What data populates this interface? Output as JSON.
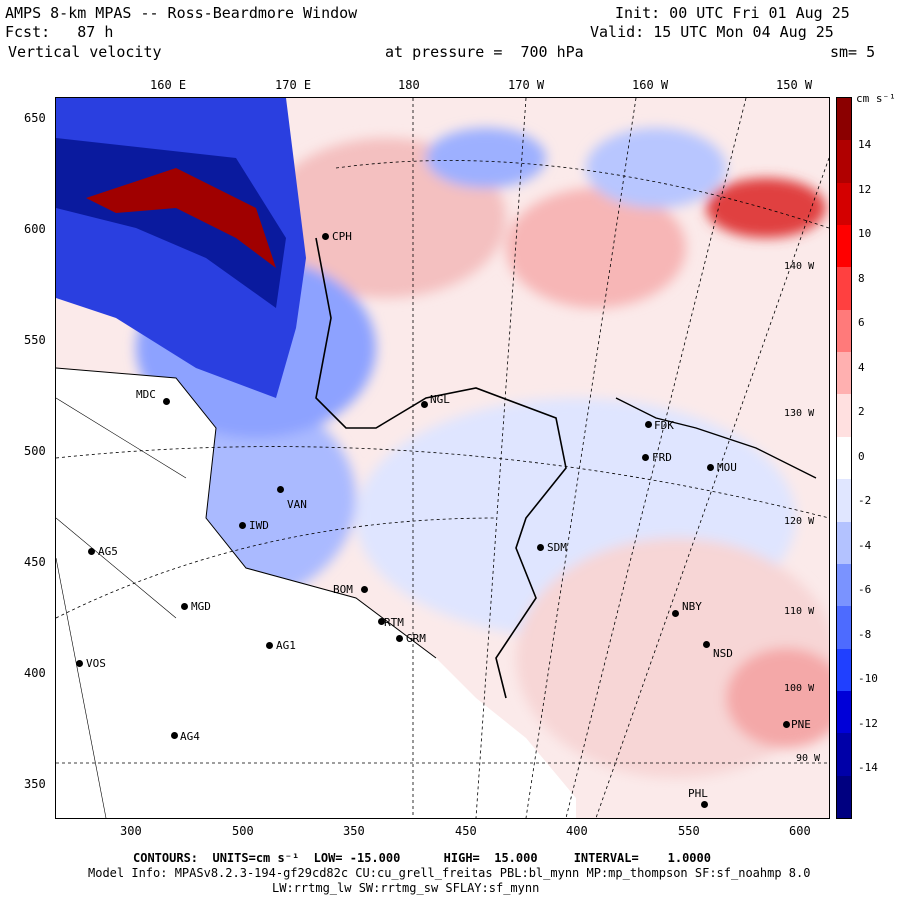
{
  "header": {
    "line1_left": "AMPS 8-km MPAS -- Ross-Beardmore Window",
    "line2_left": "Fcst:   87 h",
    "line3_left": "Vertical velocity",
    "line1_right": "Init: 00 UTC Fri 01 Aug 25",
    "line2_right": "Valid: 15 UTC Mon 04 Aug 25",
    "pressure": "at pressure =  700 hPa",
    "sm": "sm= 5"
  },
  "top_ticks": [
    "160 E",
    "170 E",
    "180",
    "170 W",
    "160 W",
    "150 W"
  ],
  "left_ticks": [
    "650",
    "600",
    "550",
    "500",
    "450",
    "400",
    "350"
  ],
  "bottom_ticks": [
    "300",
    "350",
    "400",
    "450",
    "500",
    "550",
    "600"
  ],
  "colorbar": {
    "units": "cm s⁻¹",
    "labels": [
      "14",
      "12",
      "10",
      "8",
      "6",
      "4",
      "2",
      "0",
      "-2",
      "-4",
      "-6",
      "-8",
      "-10",
      "-12",
      "-14"
    ],
    "colors": [
      "#8b0000",
      "#b00000",
      "#d40000",
      "#ff0000",
      "#ff4040",
      "#ff7a7a",
      "#ffb0b0",
      "#ffe0e0",
      "#ffffff",
      "#e0e6ff",
      "#b3c2ff",
      "#7a93ff",
      "#4d6bff",
      "#2040ff",
      "#0000d8",
      "#0000a8",
      "#000080"
    ]
  },
  "stations": [
    {
      "name": "MDC"
    },
    {
      "name": "NGL"
    },
    {
      "name": "FDK"
    },
    {
      "name": "FRD"
    },
    {
      "name": "MOU"
    },
    {
      "name": "AG5"
    },
    {
      "name": "IWD"
    },
    {
      "name": "VAN"
    },
    {
      "name": "SDM"
    },
    {
      "name": "MGD"
    },
    {
      "name": "BOM"
    },
    {
      "name": "RTM"
    },
    {
      "name": "GRM"
    },
    {
      "name": "AG1"
    },
    {
      "name": "VOS"
    },
    {
      "name": "NBY"
    },
    {
      "name": "NSD"
    },
    {
      "name": "AG4"
    },
    {
      "name": "PNE"
    },
    {
      "name": "PHL"
    },
    {
      "name": "CPH"
    }
  ],
  "meridian_labels": [
    "140 W",
    "130 W",
    "120 W",
    "110 W",
    "100 W",
    "90 W"
  ],
  "footer": {
    "contours": "CONTOURS:  UNITS=cm s⁻¹  LOW= -15.000      HIGH=  15.000     INTERVAL=    1.0000",
    "model_info": "Model Info: MPASv8.2.3-194-gf29cd82c CU:cu_grell_freitas PBL:bl_mynn MP:mp_thompson SF:sf_noahmp 8.0",
    "model_info2": "LW:rrtmg_lw SW:rrtmg_sw SFLAY:sf_mynn"
  }
}
